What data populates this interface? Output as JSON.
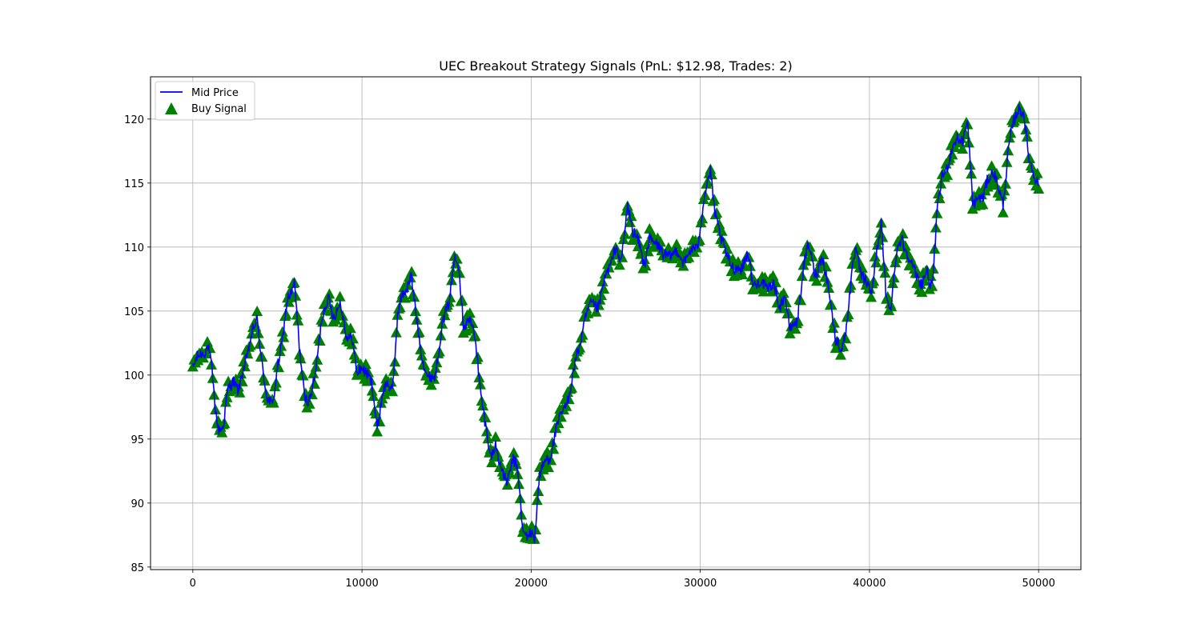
{
  "chart_data": {
    "type": "line",
    "title": "UEC Breakout Strategy Signals (PnL: $12.98, Trades: 2)",
    "xlabel": "",
    "ylabel": "",
    "xlim": [
      -2500,
      52500
    ],
    "ylim": [
      84.8,
      123.3
    ],
    "xticks": [
      0,
      10000,
      20000,
      30000,
      40000,
      50000
    ],
    "yticks": [
      85,
      90,
      95,
      100,
      105,
      110,
      115,
      120
    ],
    "grid": true,
    "legend_position": "upper-left",
    "series": [
      {
        "name": "Mid Price",
        "kind": "line",
        "color": "#0000ff",
        "x": [
          0,
          500,
          900,
          1100,
          1300,
          1500,
          1800,
          2100,
          2400,
          2700,
          3000,
          3400,
          3800,
          4100,
          4400,
          4700,
          5000,
          5300,
          5600,
          6000,
          6300,
          6600,
          6900,
          7200,
          7600,
          8000,
          8300,
          8700,
          9100,
          9400,
          9700,
          10000,
          10300,
          10600,
          10900,
          11200,
          11500,
          11800,
          12100,
          12400,
          12900,
          13200,
          13500,
          13900,
          14300,
          14700,
          15100,
          15500,
          15700,
          16000,
          16300,
          16700,
          17000,
          17300,
          17600,
          17900,
          18300,
          18600,
          18900,
          19200,
          19500,
          19800,
          20200,
          20500,
          20800,
          21100,
          21400,
          21700,
          22000,
          22400,
          22800,
          23200,
          23600,
          24000,
          24300,
          24600,
          25000,
          25300,
          25700,
          26000,
          26400,
          26700,
          27000,
          27400,
          27800,
          28200,
          28600,
          29000,
          29400,
          29800,
          30200,
          30600,
          30900,
          31200,
          31600,
          32000,
          32400,
          32800,
          33100,
          33500,
          33900,
          34300,
          34700,
          35000,
          35300,
          35700,
          36100,
          36400,
          36800,
          37200,
          37600,
          38000,
          38300,
          38600,
          38900,
          39200,
          39500,
          39800,
          40100,
          40400,
          40700,
          41000,
          41300,
          41600,
          41900,
          42200,
          42500,
          42800,
          43100,
          43400,
          43700,
          44000,
          44300,
          44600,
          44900,
          45200,
          45500,
          45800,
          46100,
          46400,
          46700,
          47000,
          47300,
          47600,
          47900,
          48200,
          48500,
          48800,
          49100,
          49400,
          49700,
          50000
        ],
        "y": [
          100.5,
          101.8,
          102.2,
          100.5,
          97.8,
          96.0,
          95.8,
          99.0,
          99.8,
          98.5,
          100.5,
          102.8,
          104.2,
          101.0,
          98.0,
          97.5,
          100.8,
          102.5,
          106.0,
          107.2,
          102.0,
          98.5,
          98.0,
          99.5,
          104.5,
          105.8,
          104.8,
          105.5,
          103.0,
          103.2,
          99.8,
          100.8,
          100.2,
          99.0,
          96.0,
          98.5,
          99.2,
          99.0,
          104.5,
          106.2,
          107.8,
          104.5,
          102.0,
          99.5,
          100.0,
          103.5,
          105.5,
          109.5,
          108.5,
          104.0,
          104.5,
          102.8,
          99.0,
          96.0,
          93.5,
          94.8,
          92.0,
          91.8,
          93.5,
          92.5,
          88.0,
          87.5,
          87.2,
          92.5,
          93.0,
          93.5,
          95.5,
          96.5,
          97.5,
          99.5,
          102.0,
          104.5,
          105.5,
          105.5,
          107.0,
          108.5,
          110.0,
          108.5,
          113.5,
          111.0,
          110.5,
          108.5,
          110.5,
          110.5,
          109.2,
          109.5,
          109.5,
          109.0,
          109.5,
          110.0,
          113.5,
          116.0,
          112.5,
          110.5,
          109.5,
          108.0,
          108.5,
          109.5,
          107.0,
          107.5,
          106.5,
          107.5,
          105.0,
          106.5,
          103.5,
          104.0,
          108.5,
          110.0,
          108.0,
          109.0,
          107.0,
          102.5,
          102.0,
          103.5,
          107.0,
          110.0,
          108.0,
          107.0,
          106.5,
          109.5,
          111.5,
          106.0,
          105.5,
          109.5,
          111.0,
          109.5,
          108.5,
          108.0,
          107.0,
          108.0,
          107.0,
          112.5,
          115.5,
          116.5,
          117.5,
          118.5,
          118.5,
          119.5,
          113.5,
          114.0,
          113.5,
          115.5,
          116.0,
          114.5,
          113.5,
          117.5,
          119.5,
          121.0,
          120.5,
          117.0,
          116.0,
          114.8
        ]
      },
      {
        "name": "Buy Signal",
        "kind": "scatter",
        "marker": "triangle-up",
        "color": "#008000"
      }
    ]
  }
}
